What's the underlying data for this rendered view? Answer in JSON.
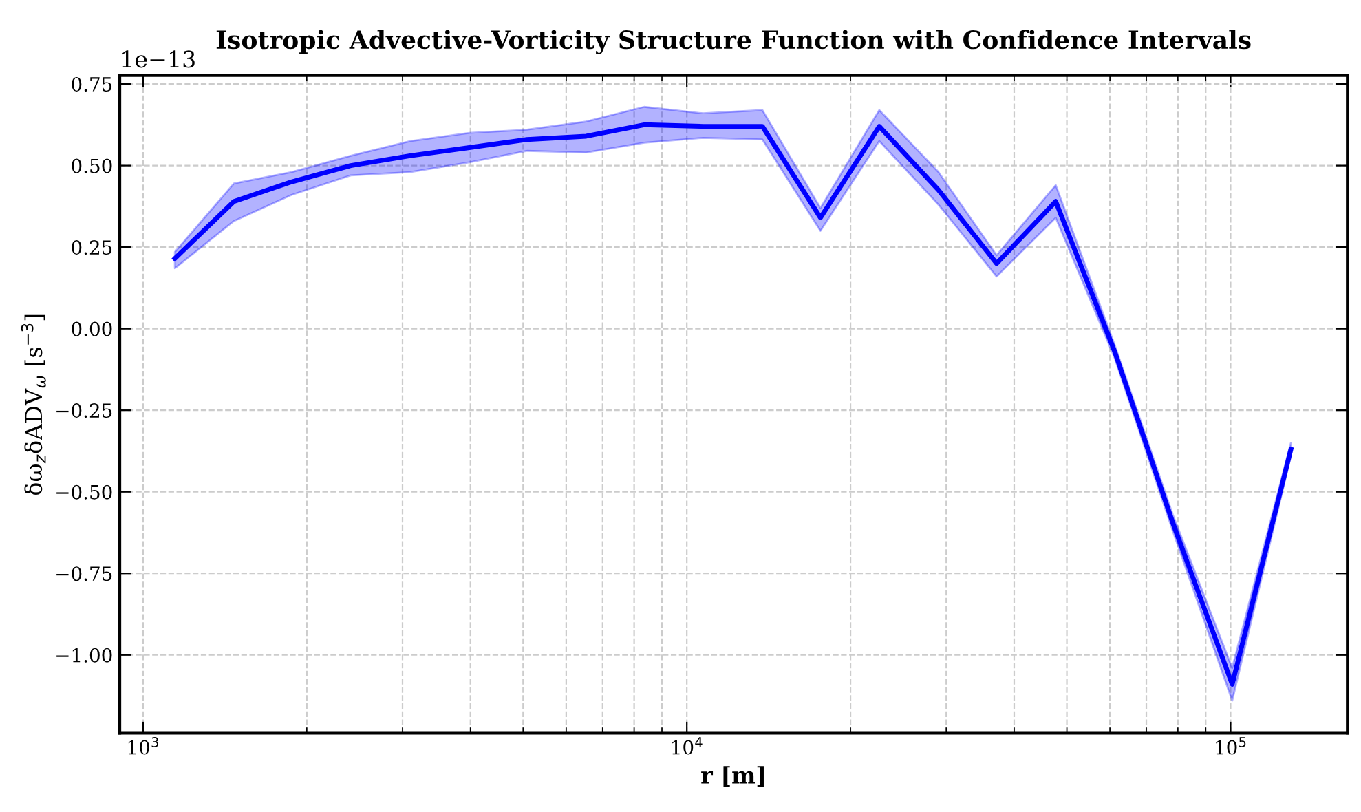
{
  "chart_data": {
    "type": "line",
    "title": "Isotropic Advective-Vorticity Structure Function with Confidence Intervals",
    "xlabel": "r [m]",
    "ylabel": "δω$_{z}$δADV$_{ω}$ [s$^{−3}$]",
    "annotations": [
      "1e−13"
    ],
    "x": [
      1144,
      1469,
      1875,
      2410,
      3097,
      3981,
      5081,
      6531,
      8349,
      10720,
      13770,
      17610,
      22590,
      29030,
      37130,
      47690,
      61220,
      78290,
      100700,
      129100
    ],
    "series": [
      {
        "color": "#0000ff",
        "values": [
          0.215,
          0.39,
          0.45,
          0.5,
          0.53,
          0.555,
          0.58,
          0.59,
          0.625,
          0.62,
          0.62,
          0.34,
          0.62,
          0.425,
          0.2,
          0.39,
          -0.07,
          -0.595,
          -1.09,
          -0.37
        ],
        "lower": [
          0.185,
          0.33,
          0.41,
          0.47,
          0.48,
          0.51,
          0.545,
          0.54,
          0.57,
          0.585,
          0.58,
          0.3,
          0.575,
          0.38,
          0.16,
          0.34,
          -0.09,
          -0.62,
          -1.14,
          -0.39
        ],
        "upper": [
          0.235,
          0.445,
          0.48,
          0.53,
          0.575,
          0.6,
          0.61,
          0.635,
          0.68,
          0.66,
          0.67,
          0.37,
          0.67,
          0.48,
          0.225,
          0.44,
          -0.05,
          -0.57,
          -1.04,
          -0.35
        ]
      }
    ],
    "log": "x",
    "xlim": [
      906,
      164000
    ],
    "xticks": [
      {
        "value": 1000,
        "label": "10$^{3}$"
      },
      {
        "value": 10000,
        "label": "10$^{4}$"
      },
      {
        "value": 100000,
        "label": "10$^{5}$"
      }
    ],
    "ylim": [
      -1.24,
      0.776
    ],
    "yticks": [
      {
        "value": -1.0,
        "label": "−1.00"
      },
      {
        "value": -0.75,
        "label": "−0.75"
      },
      {
        "value": -0.5,
        "label": "−0.50"
      },
      {
        "value": -0.25,
        "label": "−0.25"
      },
      {
        "value": 0,
        "label": "0.00"
      },
      {
        "value": 0.25,
        "label": "0.25"
      },
      {
        "value": 0.5,
        "label": "0.50"
      },
      {
        "value": 0.75,
        "label": "0.75"
      }
    ],
    "grid": true,
    "line_style": "solid",
    "marker": "none"
  }
}
